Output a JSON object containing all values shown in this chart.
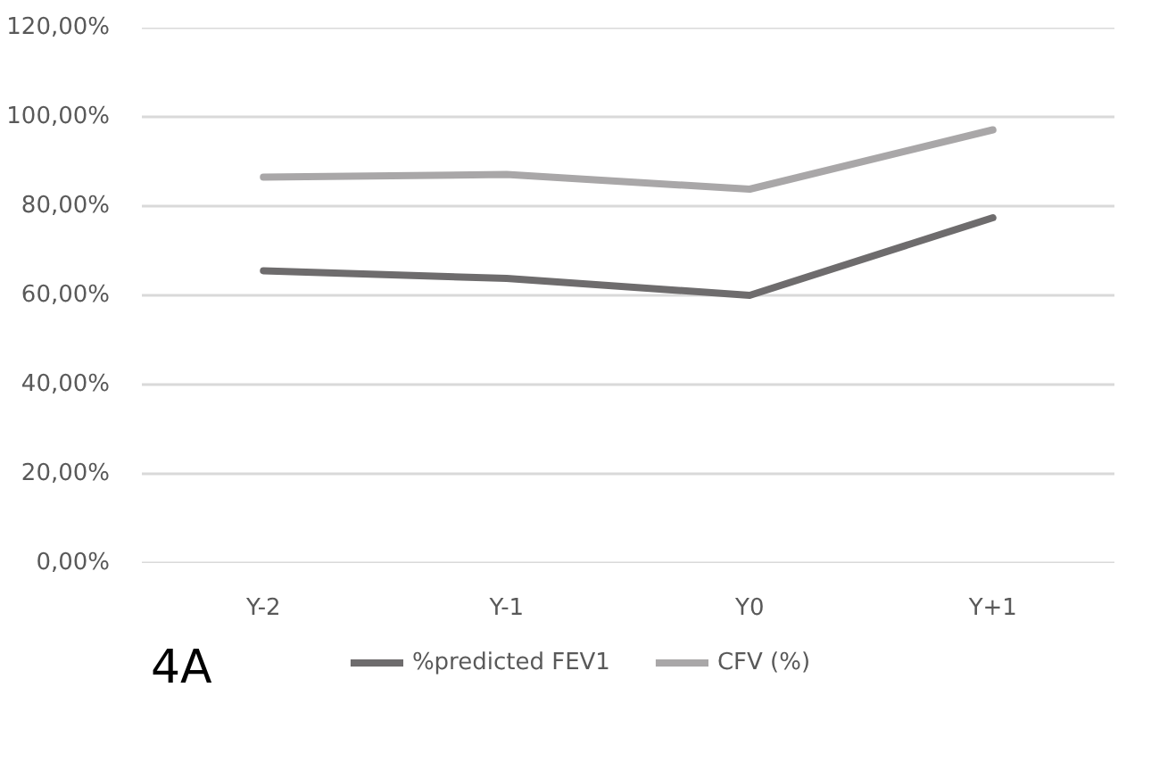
{
  "chart_data": {
    "type": "line",
    "categories": [
      "Y-2",
      "Y-1",
      "Y0",
      "Y+1"
    ],
    "series": [
      {
        "name": "%predicted FEV1",
        "color": "#6e6c6d",
        "values": [
          65.5,
          63.8,
          60.0,
          77.4
        ]
      },
      {
        "name": "CFV (%)",
        "color": "#a9a7a8",
        "values": [
          86.5,
          87.1,
          83.8,
          97.1
        ]
      }
    ],
    "ylim": [
      0,
      120
    ],
    "yticks": [
      {
        "value": 0,
        "label": "0,00%"
      },
      {
        "value": 20,
        "label": "20,00%"
      },
      {
        "value": 40,
        "label": "40,00%"
      },
      {
        "value": 60,
        "label": "60,00%"
      },
      {
        "value": 80,
        "label": "80,00%"
      },
      {
        "value": 100,
        "label": "100,00%"
      },
      {
        "value": 120,
        "label": "120,00%"
      }
    ],
    "grid": "y",
    "legend": "bottom",
    "marker": "none",
    "line_style": "solid",
    "annotations": [
      "4A"
    ]
  }
}
